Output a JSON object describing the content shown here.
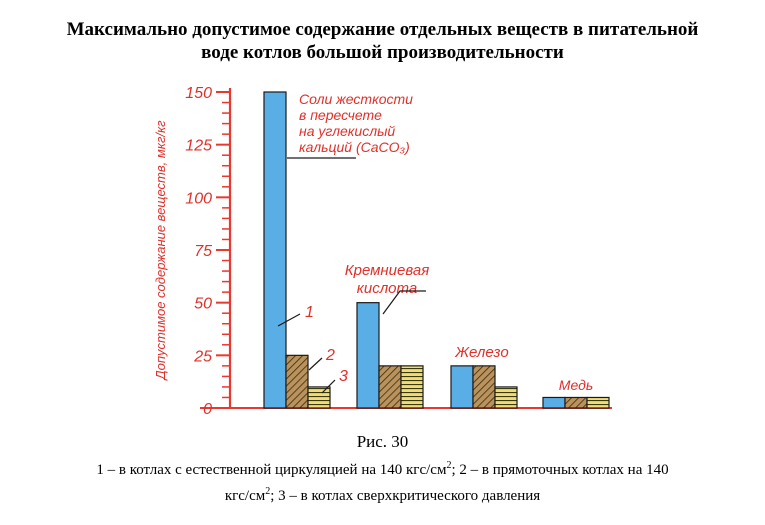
{
  "title_line1": "Максимально допустимое содержание отдельных веществ в питательной",
  "title_line2": "воде котлов большой производительности",
  "figure_label": "Рис. 30",
  "legend_line1_a": "1 – в котлах с естественной циркуляцией на 140 кгс/см",
  "legend_line1_b": "; 2 – в прямоточных котлах на 140",
  "legend_line2_a": "кгс/см",
  "legend_line2_b": "; 3 – в котлах сверхкритического давления",
  "legend_sup": "2",
  "colors": {
    "axis": "#e8382f",
    "bar_blue": "#5aaee6",
    "bar_brown": "#b9925c",
    "bar_yellow": "#f0db78",
    "outline": "#1a1a1a",
    "label": "#e0302a"
  },
  "chart_data": {
    "type": "bar",
    "ylabel": "Допустимое содержание веществ, мкг/кг",
    "ylim": [
      0,
      150
    ],
    "yticks": [
      0,
      25,
      50,
      75,
      100,
      125,
      150
    ],
    "categories": [
      {
        "label_lines": [
          "Соли жесткости",
          "в пересчете",
          "на углекислый",
          "кальций (CaCO₃)"
        ]
      },
      {
        "label_lines": [
          "Кремниевая",
          "кислота"
        ]
      },
      {
        "label_lines": [
          "Железо"
        ]
      },
      {
        "label_lines": [
          "Медь"
        ]
      }
    ],
    "series": [
      {
        "name": "1",
        "values": [
          150,
          50,
          20,
          5
        ]
      },
      {
        "name": "2",
        "values": [
          25,
          20,
          20,
          5
        ]
      },
      {
        "name": "3",
        "values": [
          10,
          20,
          10,
          5
        ]
      }
    ],
    "series_marks": [
      "1",
      "2",
      "3"
    ]
  }
}
